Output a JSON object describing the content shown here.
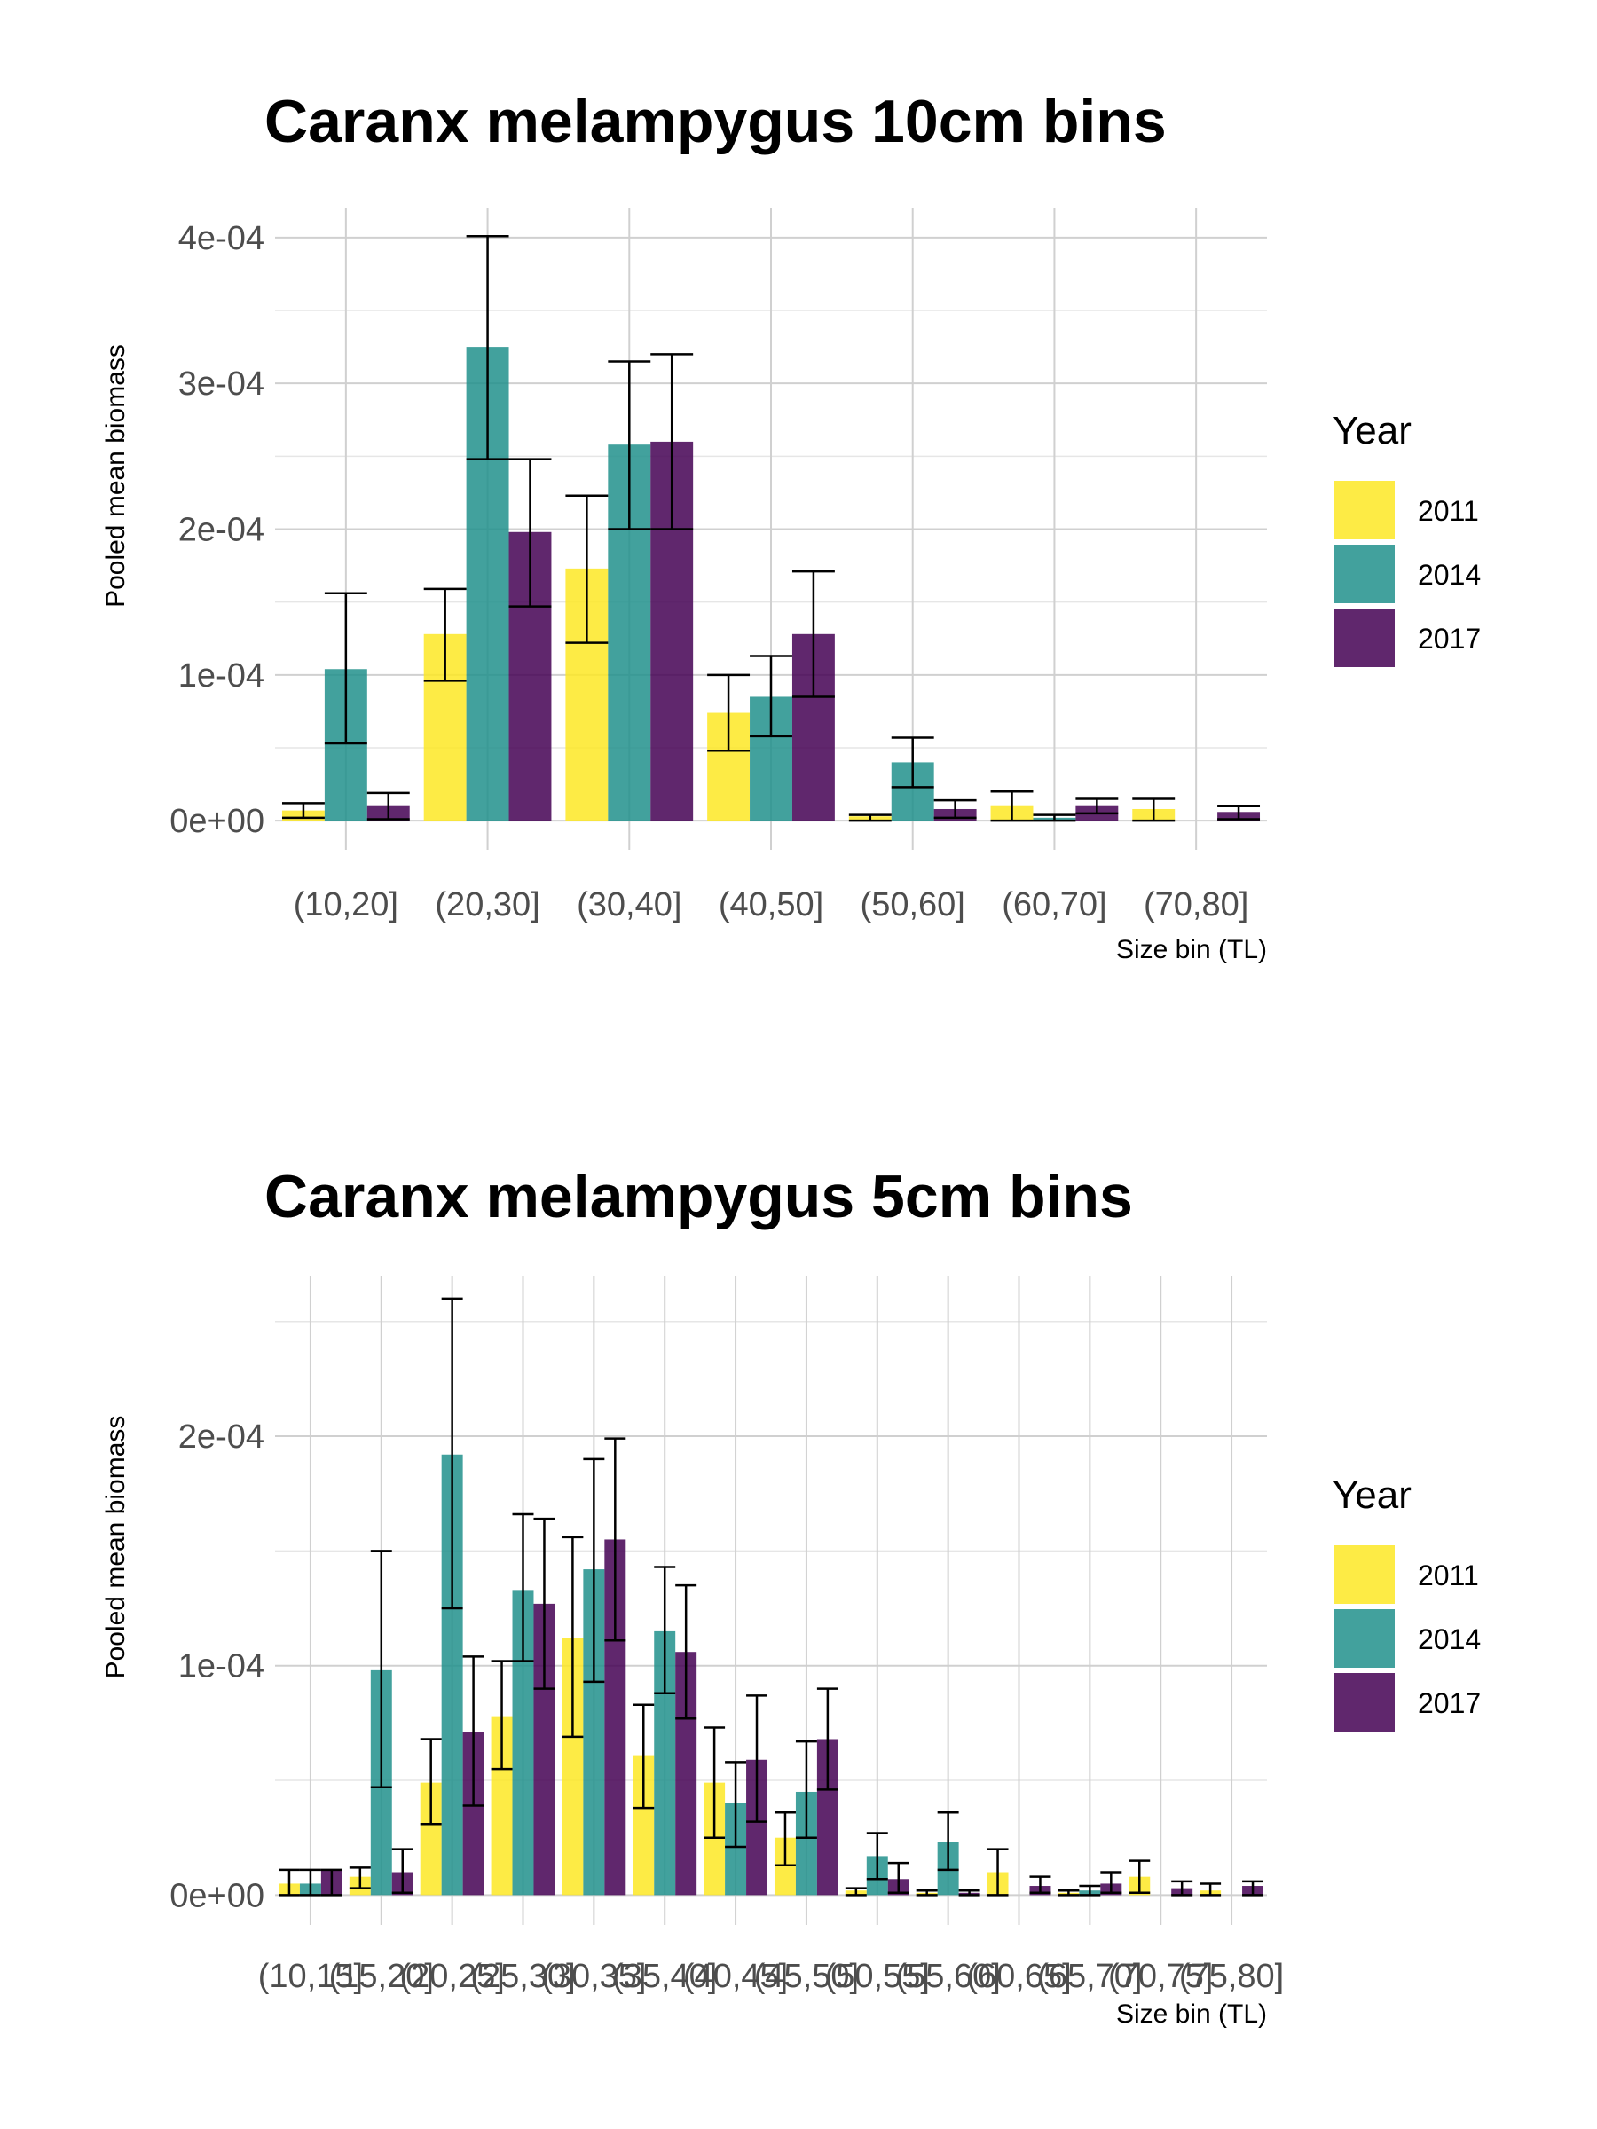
{
  "colors": {
    "2011": "#FDE725",
    "2014": "#21908C",
    "2017": "#440154"
  },
  "chart_data": [
    {
      "type": "bar",
      "title": "Caranx melampygus 10cm bins",
      "xlabel": "Size bin (TL)",
      "ylabel": "Pooled mean biomass",
      "ylim": [
        -2e-05,
        0.00042
      ],
      "yticks": [
        0,
        0.0001,
        0.0002,
        0.0003,
        0.0004
      ],
      "ytick_labels": [
        "0e+00",
        "1e-04",
        "2e-04",
        "3e-04",
        "4e-04"
      ],
      "categories": [
        "(10,20]",
        "(20,30]",
        "(30,40]",
        "(40,50]",
        "(50,60]",
        "(60,70]",
        "(70,80]"
      ],
      "legend": {
        "title": "Year",
        "position": "right"
      },
      "series": [
        {
          "name": "2011",
          "values": [
            7e-06,
            0.000128,
            0.000173,
            7.4e-05,
            3e-06,
            1e-05,
            8e-06
          ],
          "lower": [
            2e-06,
            9.6e-05,
            0.000122,
            4.8e-05,
            0.0,
            0.0,
            0.0
          ],
          "upper": [
            1.2e-05,
            0.000159,
            0.000223,
            0.0001,
            4e-06,
            2e-05,
            1.5e-05
          ]
        },
        {
          "name": "2014",
          "values": [
            0.000104,
            0.000325,
            0.000258,
            8.5e-05,
            4e-05,
            2e-06,
            null
          ],
          "lower": [
            5.3e-05,
            0.000248,
            0.0002,
            5.8e-05,
            2.3e-05,
            0.0,
            null
          ],
          "upper": [
            0.000156,
            0.000401,
            0.000315,
            0.000113,
            5.7e-05,
            4e-06,
            null
          ]
        },
        {
          "name": "2017",
          "values": [
            1e-05,
            0.000198,
            0.00026,
            0.000128,
            8e-06,
            1e-05,
            6e-06
          ],
          "lower": [
            1e-06,
            0.000147,
            0.0002,
            8.5e-05,
            2e-06,
            5e-06,
            1e-06
          ],
          "upper": [
            1.9e-05,
            0.000248,
            0.00032,
            0.000171,
            1.4e-05,
            1.5e-05,
            1e-05
          ]
        }
      ]
    },
    {
      "type": "bar",
      "title": "Caranx melampygus 5cm bins",
      "xlabel": "Size bin (TL)",
      "ylabel": "Pooled mean biomass",
      "ylim": [
        -1.3e-05,
        0.00027
      ],
      "yticks": [
        0,
        0.0001,
        0.0002
      ],
      "ytick_labels": [
        "0e+00",
        "1e-04",
        "2e-04"
      ],
      "categories": [
        "(10,15]",
        "(15,20]",
        "(20,25]",
        "(25,30]",
        "(30,35]",
        "(35,40]",
        "(40,45]",
        "(45,50]",
        "(50,55]",
        "(55,60]",
        "(60,65]",
        "(65,70]",
        "(70,75]",
        "(75,80]"
      ],
      "legend": {
        "title": "Year",
        "position": "right"
      },
      "series": [
        {
          "name": "2011",
          "values": [
            5e-06,
            8e-06,
            4.9e-05,
            7.8e-05,
            0.000112,
            6.1e-05,
            4.9e-05,
            2.5e-05,
            2e-06,
            1e-06,
            1e-05,
            1e-06,
            8e-06,
            2e-06
          ],
          "lower": [
            0.0,
            3e-06,
            3.1e-05,
            5.5e-05,
            6.9e-05,
            3.8e-05,
            2.5e-05,
            1.3e-05,
            0.0,
            0.0,
            0.0,
            0.0,
            1e-06,
            0.0
          ],
          "upper": [
            1.1e-05,
            1.2e-05,
            6.8e-05,
            0.000102,
            0.000156,
            8.3e-05,
            7.3e-05,
            3.6e-05,
            3e-06,
            2e-06,
            2e-05,
            2e-06,
            1.5e-05,
            5e-06
          ]
        },
        {
          "name": "2014",
          "values": [
            5e-06,
            9.8e-05,
            0.000192,
            0.000133,
            0.000142,
            0.000115,
            4e-05,
            4.5e-05,
            1.7e-05,
            2.3e-05,
            null,
            2e-06,
            null,
            null
          ],
          "lower": [
            0.0,
            4.7e-05,
            0.000125,
            0.000102,
            9.3e-05,
            8.8e-05,
            2.1e-05,
            2.5e-05,
            7e-06,
            1.1e-05,
            null,
            0.0,
            null,
            null
          ],
          "upper": [
            1.1e-05,
            0.00015,
            0.00026,
            0.000166,
            0.00019,
            0.000143,
            5.8e-05,
            6.7e-05,
            2.7e-05,
            3.6e-05,
            null,
            4e-06,
            null,
            null
          ],
          "hidden_error": [
            false,
            false,
            false,
            false,
            false,
            false,
            false,
            false,
            false,
            false,
            false,
            false,
            false,
            false
          ]
        },
        {
          "name": "2017",
          "values": [
            1.1e-05,
            1e-05,
            7.1e-05,
            0.000127,
            0.000155,
            0.000106,
            5.9e-05,
            6.8e-05,
            7e-06,
            1e-06,
            4e-06,
            5e-06,
            3e-06,
            4e-06
          ],
          "lower": [
            0.0,
            1e-06,
            3.9e-05,
            9e-05,
            0.000111,
            7.7e-05,
            3.2e-05,
            4.6e-05,
            1e-06,
            0.0,
            1e-06,
            1e-06,
            0.0,
            0.0
          ],
          "upper": [
            1.1e-05,
            2e-05,
            0.000104,
            0.000164,
            0.000199,
            0.000135,
            8.7e-05,
            9e-05,
            1.4e-05,
            2e-06,
            8e-06,
            1e-05,
            6e-06,
            6e-06
          ]
        }
      ]
    }
  ]
}
